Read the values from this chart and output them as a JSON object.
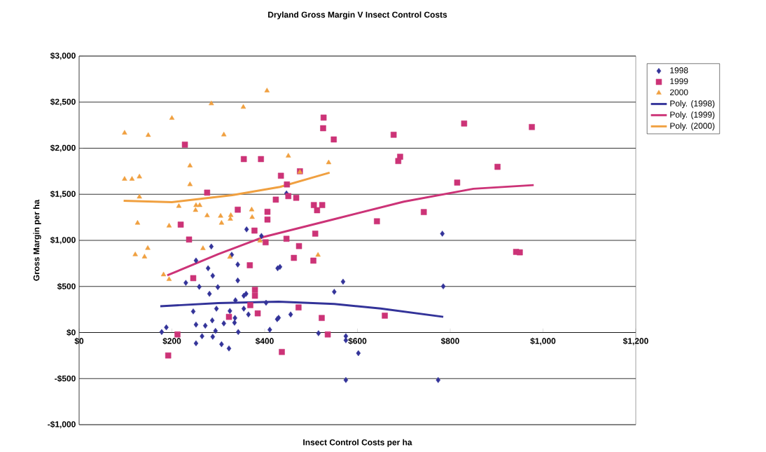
{
  "chart_data": {
    "type": "scatter",
    "title": "Dryland Gross Margin V Insect Control Costs",
    "xlabel": "Insect Control Costs per ha",
    "ylabel": "Gross Margin per ha",
    "xlim": [
      0,
      1200
    ],
    "ylim": [
      -1000,
      3000
    ],
    "xticks": [
      {
        "value": 0,
        "label": "$0"
      },
      {
        "value": 200,
        "label": "$200"
      },
      {
        "value": 400,
        "label": "$400"
      },
      {
        "value": 600,
        "label": "$600"
      },
      {
        "value": 800,
        "label": "$800"
      },
      {
        "value": 1000,
        "label": "$1,000"
      },
      {
        "value": 1200,
        "label": "$1,200"
      }
    ],
    "yticks": [
      {
        "value": -1000,
        "label": "-$1,000"
      },
      {
        "value": -500,
        "label": "-$500"
      },
      {
        "value": 0,
        "label": "$0"
      },
      {
        "value": 500,
        "label": "$500"
      },
      {
        "value": 1000,
        "label": "$1,000"
      },
      {
        "value": 1500,
        "label": "$1,500"
      },
      {
        "value": 2000,
        "label": "$2,000"
      },
      {
        "value": 2500,
        "label": "$2,500"
      },
      {
        "value": 3000,
        "label": "$3,000"
      }
    ],
    "grid": "y",
    "legend": "right",
    "series": [
      {
        "name": "1998",
        "type": "scatter",
        "marker": "diamond",
        "color": "#333399",
        "x": [
          361,
          285,
          393,
          329,
          447,
          783,
          252,
          278,
          342,
          288,
          342,
          230,
          259,
          299,
          281,
          360,
          355,
          337,
          403,
          428,
          433,
          246,
          296,
          325,
          355,
          365,
          336,
          252,
          272,
          287,
          312,
          335,
          427,
          430,
          178,
          188,
          343,
          411,
          294,
          288,
          265,
          252,
          307,
          323,
          516,
          550,
          569,
          785,
          575,
          575,
          602,
          575,
          774,
          456
        ],
        "values": [
          1119,
          933,
          1048,
          844,
          1510,
          1073,
          781,
          697,
          738,
          616,
          565,
          539,
          496,
          493,
          420,
          420,
          399,
          349,
          323,
          697,
          712,
          229,
          259,
          234,
          259,
          196,
          158,
          86,
          74,
          132,
          99,
          107,
          145,
          160,
          5,
          56,
          5,
          30,
          18,
          -46,
          -40,
          -117,
          -127,
          -173,
          -8,
          442,
          552,
          501,
          -40,
          -84,
          -224,
          -516,
          -516,
          196
        ]
      },
      {
        "name": "1999",
        "type": "scatter",
        "marker": "square",
        "color": "#cc3377",
        "x": [
          228,
          355,
          392,
          435,
          276,
          424,
          342,
          406,
          406,
          219,
          378,
          237,
          402,
          527,
          526,
          549,
          678,
          830,
          692,
          688,
          815,
          476,
          448,
          451,
          468,
          506,
          524,
          513,
          743,
          642,
          509,
          447,
          474,
          463,
          505,
          976,
          902,
          942,
          950,
          368,
          246,
          379,
          379,
          369,
          385,
          323,
          212,
          192,
          437,
          473,
          523,
          536,
          659
        ],
        "values": [
          2039,
          1882,
          1882,
          1701,
          1518,
          1442,
          1333,
          1310,
          1226,
          1171,
          1106,
          1009,
          979,
          2332,
          2217,
          2095,
          2146,
          2268,
          1907,
          1861,
          1627,
          1750,
          1607,
          1480,
          1462,
          1383,
          1383,
          1327,
          1307,
          1207,
          1073,
          1017,
          938,
          810,
          780,
          2230,
          1798,
          875,
          870,
          730,
          590,
          463,
          399,
          297,
          208,
          170,
          -21,
          -249,
          -211,
          272,
          158,
          -21,
          183
        ]
      },
      {
        "name": "2000",
        "type": "scatter",
        "marker": "triangle",
        "color": "#f0a040",
        "x": [
          405,
          285,
          354,
          200,
          98,
          149,
          312,
          239,
          98,
          114,
          130,
          239,
          130,
          215,
          252,
          251,
          260,
          276,
          305,
          307,
          327,
          326,
          372,
          373,
          126,
          194,
          390,
          148,
          121,
          141,
          267,
          451,
          538,
          476,
          515,
          182,
          194,
          325
        ],
        "values": [
          2624,
          2484,
          2446,
          2326,
          2166,
          2141,
          2146,
          1810,
          1665,
          1665,
          1691,
          1607,
          1472,
          1371,
          1380,
          1327,
          1380,
          1269,
          1264,
          1188,
          1272,
          1231,
          1333,
          1251,
          1188,
          1157,
          995,
          915,
          846,
          822,
          913,
          1917,
          1844,
          1741,
          841,
          628,
          577,
          819
        ]
      },
      {
        "name": "Poly. (1998)",
        "type": "line",
        "line_style": "solid",
        "color": "#333399",
        "x": [
          175,
          300,
          430,
          550,
          650,
          785
        ],
        "values": [
          285,
          320,
          335,
          310,
          260,
          170
        ]
      },
      {
        "name": "Poly. (1999)",
        "type": "line",
        "line_style": "solid",
        "color": "#cc3377",
        "x": [
          190,
          300,
          400,
          550,
          700,
          850,
          980
        ],
        "values": [
          620,
          850,
          1040,
          1230,
          1420,
          1560,
          1600
        ]
      },
      {
        "name": "Poly. (2000)",
        "type": "line",
        "line_style": "solid",
        "color": "#f0a040",
        "x": [
          96,
          200,
          330,
          433,
          540
        ],
        "values": [
          1430,
          1415,
          1490,
          1580,
          1735
        ]
      }
    ]
  }
}
